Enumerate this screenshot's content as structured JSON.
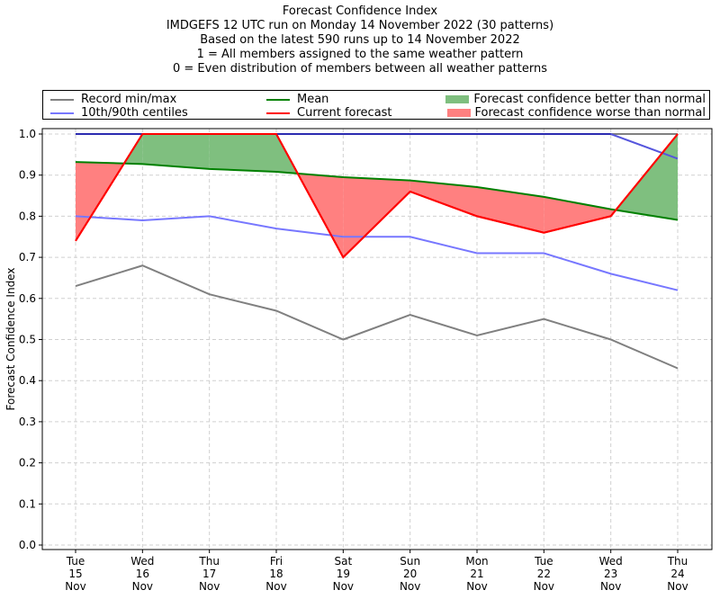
{
  "chart_data": {
    "type": "line",
    "title": "Forecast Confidence Index",
    "subtitle_lines": [
      "IMDGEFS 12 UTC run on Monday 14 November 2022 (30 patterns)",
      "Based on the latest 590 runs up to 14 November 2022",
      "1 = All members assigned to the same weather pattern",
      "0 = Even distribution of members between all weather patterns"
    ],
    "xlabel": "",
    "ylabel": "Forecast Confidence Index",
    "ylim": [
      0.0,
      1.0
    ],
    "grid": true,
    "legend_position": "top",
    "categories": [
      {
        "dow": "Tue",
        "day": "15",
        "mon": "Nov"
      },
      {
        "dow": "Wed",
        "day": "16",
        "mon": "Nov"
      },
      {
        "dow": "Thu",
        "day": "17",
        "mon": "Nov"
      },
      {
        "dow": "Fri",
        "day": "18",
        "mon": "Nov"
      },
      {
        "dow": "Sat",
        "day": "19",
        "mon": "Nov"
      },
      {
        "dow": "Sun",
        "day": "20",
        "mon": "Nov"
      },
      {
        "dow": "Mon",
        "day": "21",
        "mon": "Nov"
      },
      {
        "dow": "Tue",
        "day": "22",
        "mon": "Nov"
      },
      {
        "dow": "Wed",
        "day": "23",
        "mon": "Nov"
      },
      {
        "dow": "Thu",
        "day": "24",
        "mon": "Nov"
      }
    ],
    "y_ticks": [
      "0.0",
      "0.1",
      "0.2",
      "0.3",
      "0.4",
      "0.5",
      "0.6",
      "0.7",
      "0.8",
      "0.9",
      "1.0"
    ],
    "series": [
      {
        "name": "Record max",
        "legend_group": "Record min/max",
        "color": "#808080",
        "values": [
          1.0,
          1.0,
          1.0,
          1.0,
          1.0,
          1.0,
          1.0,
          1.0,
          1.0,
          1.0
        ]
      },
      {
        "name": "Record min",
        "legend_group": "Record min/max",
        "color": "#808080",
        "values": [
          0.63,
          0.68,
          0.61,
          0.57,
          0.5,
          0.56,
          0.51,
          0.55,
          0.5,
          0.43
        ]
      },
      {
        "name": "90th centile",
        "legend_group": "10th/90th centiles",
        "color": "#7777ff",
        "values": [
          1.0,
          1.0,
          1.0,
          1.0,
          1.0,
          1.0,
          1.0,
          1.0,
          1.0,
          0.94
        ]
      },
      {
        "name": "10th centile",
        "legend_group": "10th/90th centiles",
        "color": "#7777ff",
        "values": [
          0.8,
          0.79,
          0.8,
          0.77,
          0.75,
          0.75,
          0.71,
          0.71,
          0.66,
          0.62
        ]
      },
      {
        "name": "Mean",
        "color": "#008000",
        "values": [
          0.932,
          0.927,
          0.915,
          0.908,
          0.895,
          0.887,
          0.871,
          0.847,
          0.817,
          0.791
        ]
      },
      {
        "name": "Current forecast",
        "color": "#ff0000",
        "values": [
          0.74,
          1.0,
          1.0,
          1.0,
          0.7,
          0.86,
          0.8,
          0.76,
          0.8,
          1.0
        ]
      }
    ],
    "fills": [
      {
        "name": "Forecast confidence better than normal",
        "color": "#7fbf7f",
        "condition": "current > mean"
      },
      {
        "name": "Forecast confidence worse than normal",
        "color": "#ff8080",
        "condition": "current < mean"
      }
    ]
  },
  "legend": {
    "items": [
      {
        "label": "Record min/max",
        "color": "#808080",
        "kind": "line"
      },
      {
        "label": "10th/90th centiles",
        "color": "#7777ff",
        "kind": "line"
      },
      {
        "label": "Mean",
        "color": "#008000",
        "kind": "line"
      },
      {
        "label": "Current forecast",
        "color": "#ff0000",
        "kind": "line"
      },
      {
        "label": "Forecast confidence better than normal",
        "color": "#7fbf7f",
        "kind": "patch"
      },
      {
        "label": "Forecast confidence worse than normal",
        "color": "#ff8080",
        "kind": "patch"
      }
    ]
  }
}
